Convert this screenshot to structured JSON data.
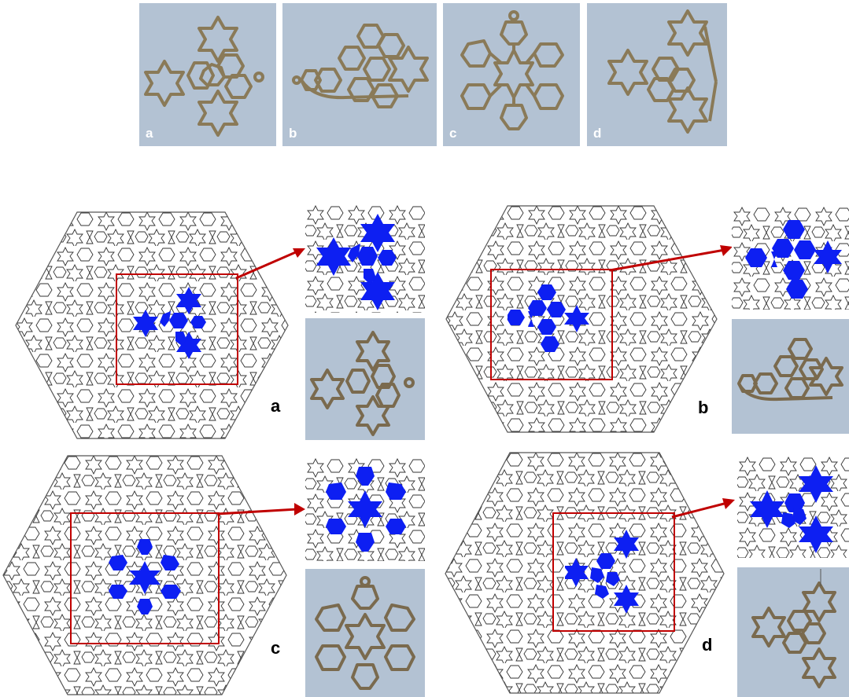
{
  "top_row": {
    "photos": [
      {
        "label": "a",
        "motif": "star-triangle"
      },
      {
        "label": "b",
        "motif": "hexagon-triangle"
      },
      {
        "label": "c",
        "motif": "snowflake"
      },
      {
        "label": "d",
        "motif": "star-triangle-rotated"
      }
    ]
  },
  "panels": [
    {
      "label": "a",
      "highlight": "plus-cluster"
    },
    {
      "label": "b",
      "highlight": "hex-cluster"
    },
    {
      "label": "c",
      "highlight": "six-arm-star"
    },
    {
      "label": "d",
      "highlight": "triangle-cluster"
    }
  ],
  "colors": {
    "photo_bg": "#b3c2d3",
    "pendant_metal": "#7a6a4e",
    "highlight_fill": "#0d1ff2",
    "selection_frame": "#c00000",
    "arrow": "#c00000",
    "pattern_stroke": "#333333"
  }
}
